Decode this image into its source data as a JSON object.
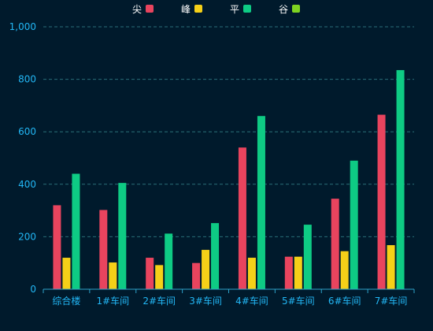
{
  "chart_data": {
    "type": "bar",
    "categories": [
      "综合楼",
      "1#车间",
      "2#车间",
      "3#车间",
      "4#车间",
      "5#车间",
      "6#车间",
      "7#车间"
    ],
    "series": [
      {
        "name": "尖",
        "color": "#e8445e",
        "values": [
          320,
          302,
          120,
          100,
          540,
          124,
          345,
          665
        ]
      },
      {
        "name": "峰",
        "color": "#f5d018",
        "values": [
          120,
          102,
          92,
          150,
          120,
          124,
          145,
          168
        ]
      },
      {
        "name": "平",
        "color": "#0ecb84",
        "values": [
          440,
          405,
          212,
          252,
          660,
          246,
          490,
          835
        ]
      },
      {
        "name": "谷",
        "color": "#7ed321",
        "values": [
          0,
          0,
          0,
          0,
          0,
          0,
          0,
          0
        ]
      }
    ],
    "yticks": [
      "0",
      "200",
      "400",
      "600",
      "800",
      "1,000"
    ],
    "ylim": [
      0,
      1000
    ],
    "grid": true,
    "legend": "top-center",
    "colors": {
      "background": "#001a2c",
      "axis_text": "#22b7f5",
      "grid": "#2a6f78",
      "axis_line": "#2ea2c8",
      "legend_text": "#ffffff"
    }
  }
}
